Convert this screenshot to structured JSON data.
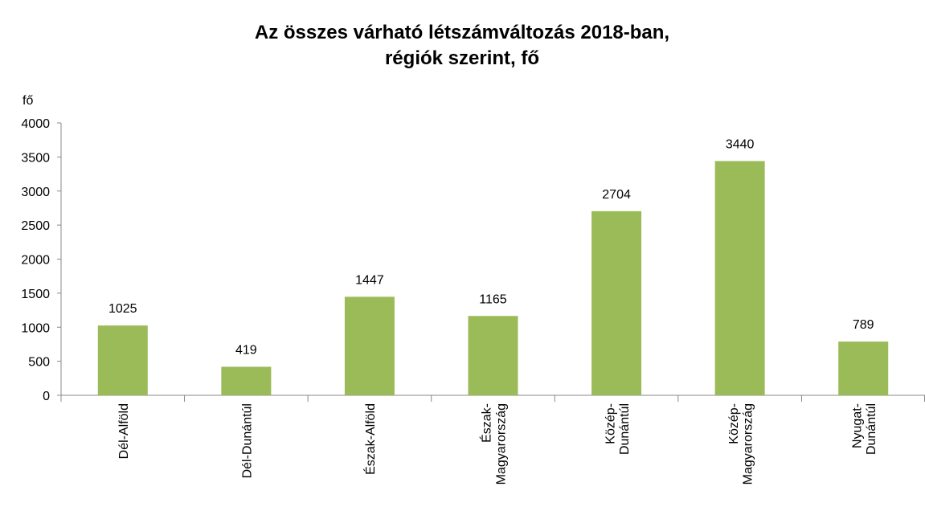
{
  "chart_data": {
    "type": "bar",
    "title": [
      "Az összes  várható létszámváltozás 2018-ban,",
      "régiók szerint, fő"
    ],
    "y_label": "fő",
    "categories": [
      "Dél-Alföld",
      "Dél-Dunántúl",
      "Észak-Alföld",
      "Észak-\nMagyarország",
      "Közép-\nDunántúl",
      "Közép-\nMagyarország",
      "Nyugat-\nDunántúl"
    ],
    "values": [
      1025,
      419,
      1447,
      1165,
      2704,
      3440,
      789
    ],
    "color": "#9bbb59",
    "ylim": [
      0,
      4000
    ],
    "yticks": [
      0,
      500,
      1000,
      1500,
      2000,
      2500,
      3000,
      3500,
      4000
    ],
    "grid": false
  }
}
